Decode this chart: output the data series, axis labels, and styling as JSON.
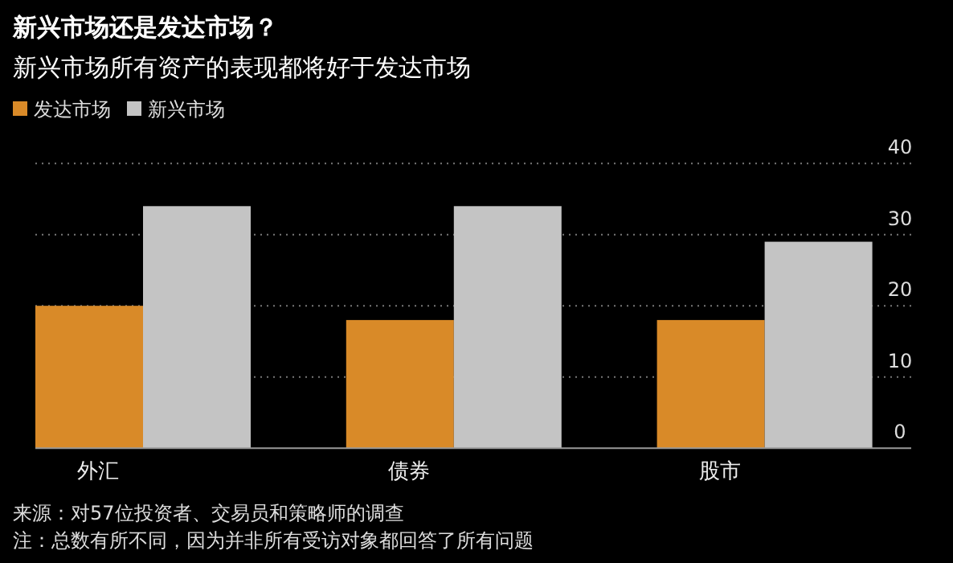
{
  "chart_data": {
    "type": "bar",
    "title": "新兴市场还是发达市场？",
    "subtitle": "新兴市场所有资产的表现都将好于发达市场",
    "categories": [
      "外汇",
      "债券",
      "股市"
    ],
    "series": [
      {
        "name": "发达市场",
        "color": "#d98a28",
        "values": [
          20,
          18,
          18
        ]
      },
      {
        "name": "新兴市场",
        "color": "#c4c4c4",
        "values": [
          34,
          34,
          29
        ]
      }
    ],
    "ylim": [
      0,
      40
    ],
    "yticks": [
      0,
      10,
      20,
      30,
      40
    ],
    "grid": "y",
    "legend": "top left",
    "annotations": [
      "来源：对57位投资者、交易员和策略师的调查",
      "注：总数有所不同，因为并非所有受访对象都回答了所有问题"
    ]
  }
}
